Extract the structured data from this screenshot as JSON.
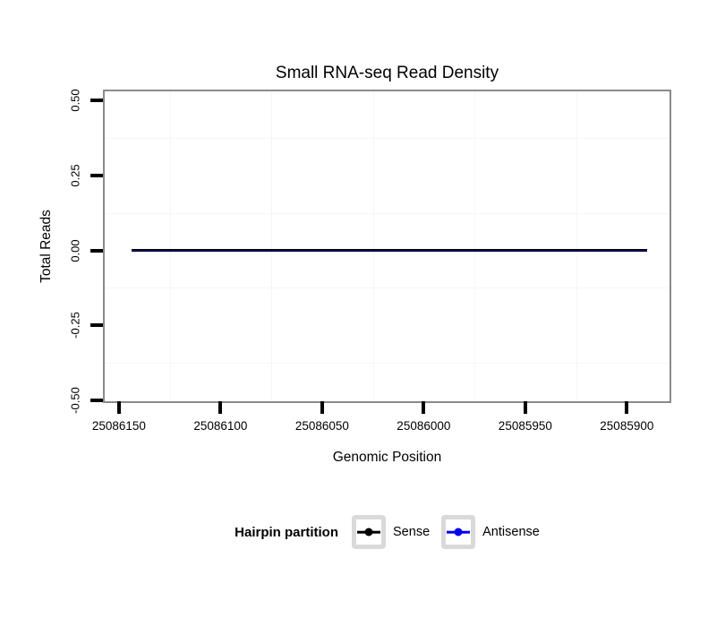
{
  "figure": {
    "background": "#ffffff"
  },
  "chart_data": {
    "type": "line",
    "title": "Small RNA-seq Read Density",
    "xlabel": "Genomic Position",
    "ylabel": "Total Reads",
    "x_axis_reversed": true,
    "axes": {
      "x": {
        "domain": [
          25086157,
          25085879
        ],
        "ticks": [
          25086150,
          25086100,
          25086050,
          25086000,
          25085950,
          25085900
        ],
        "tick_labels": [
          "25086150",
          "25086100",
          "25086050",
          "25086000",
          "25085950",
          "25085900"
        ]
      },
      "y": {
        "domain": [
          -0.504,
          0.531
        ],
        "ticks": [
          0.5,
          0.25,
          0,
          -0.25,
          -0.5
        ],
        "tick_labels": [
          "0.50",
          "0.25",
          "0.00",
          "-0.25",
          "-0.50"
        ]
      }
    },
    "grid": {
      "minor_x": [
        25086125,
        25086075,
        25086025,
        25085975,
        25085925
      ],
      "minor_y": [
        0.375,
        0.125,
        -0.125,
        -0.375
      ],
      "color": "#f6f6f6"
    },
    "series": [
      {
        "name": "Sense",
        "color": "#000000",
        "x": [
          25086144,
          25085890
        ],
        "y": [
          0,
          0
        ],
        "width": 3.6,
        "opacity": 1
      },
      {
        "name": "Antisense",
        "color": "#0000ee",
        "x": [
          25086144,
          25085890
        ],
        "y": [
          0,
          0
        ],
        "width": 1.7,
        "opacity": 0.6
      }
    ],
    "legend": {
      "title": "Hairpin partition",
      "position": "bottom",
      "entries": [
        {
          "label": "Sense",
          "color": "#000000"
        },
        {
          "label": "Antisense",
          "color": "#0000ee"
        }
      ]
    },
    "panel": {
      "border_color": "#8a8a8a",
      "background": "#ffffff"
    }
  }
}
